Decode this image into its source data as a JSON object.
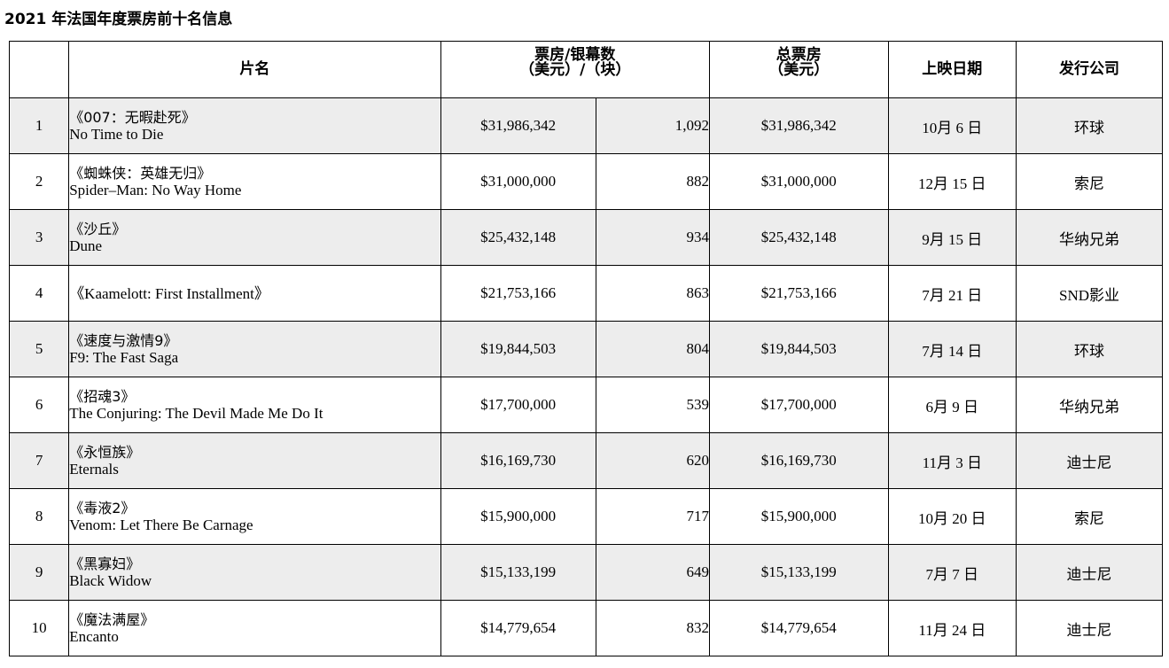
{
  "title": "2021 年法国年度票房前十名信息",
  "headers": {
    "rank": "",
    "film": "片名",
    "per_screen_line1": "票房/银幕数",
    "per_screen_line2": "（美元）/（块）",
    "total_line1": "总票房",
    "total_line2": "（美元）",
    "release_date": "上映日期",
    "distributor": "发行公司"
  },
  "rows": [
    {
      "rank": "1",
      "title_zh": "《007：无暇赴死》",
      "title_en": "No Time to Die",
      "box_office": "$31,986,342",
      "screens": "1,092",
      "total": "$31,986,342",
      "release_date": "10月 6 日",
      "distributor": "环球"
    },
    {
      "rank": "2",
      "title_zh": "《蜘蛛侠：英雄无归》",
      "title_en": "Spider–Man: No Way Home",
      "box_office": "$31,000,000",
      "screens": "882",
      "total": "$31,000,000",
      "release_date": "12月 15 日",
      "distributor": "索尼"
    },
    {
      "rank": "3",
      "title_zh": "《沙丘》",
      "title_en": "Dune",
      "box_office": "$25,432,148",
      "screens": "934",
      "total": "$25,432,148",
      "release_date": "9月 15 日",
      "distributor": "华纳兄弟"
    },
    {
      "rank": "4",
      "title_zh": "",
      "title_en": "",
      "title_single": "《Kaamelott: First Installment》",
      "box_office": "$21,753,166",
      "screens": "863",
      "total": "$21,753,166",
      "release_date": "7月 21 日",
      "distributor": "SND影业"
    },
    {
      "rank": "5",
      "title_zh": "《速度与激情9》",
      "title_en": "F9: The Fast Saga",
      "box_office": "$19,844,503",
      "screens": "804",
      "total": "$19,844,503",
      "release_date": "7月 14 日",
      "distributor": "环球"
    },
    {
      "rank": "6",
      "title_zh": "《招魂3》",
      "title_en": "The Conjuring: The Devil Made Me Do It",
      "box_office": "$17,700,000",
      "screens": "539",
      "total": "$17,700,000",
      "release_date": "6月 9 日",
      "distributor": "华纳兄弟"
    },
    {
      "rank": "7",
      "title_zh": "《永恒族》",
      "title_en": "Eternals",
      "box_office": "$16,169,730",
      "screens": "620",
      "total": "$16,169,730",
      "release_date": "11月 3 日",
      "distributor": "迪士尼"
    },
    {
      "rank": "8",
      "title_zh": "《毒液2》",
      "title_en": "Venom: Let There Be Carnage",
      "box_office": "$15,900,000",
      "screens": "717",
      "total": "$15,900,000",
      "release_date": "10月 20 日",
      "distributor": "索尼"
    },
    {
      "rank": "9",
      "title_zh": "《黑寡妇》",
      "title_en": "Black Widow",
      "box_office": "$15,133,199",
      "screens": "649",
      "total": "$15,133,199",
      "release_date": "7月 7 日",
      "distributor": "迪士尼"
    },
    {
      "rank": "10",
      "title_zh": "《魔法满屋》",
      "title_en": "Encanto",
      "box_office": "$14,779,654",
      "screens": "832",
      "total": "$14,779,654",
      "release_date": "11月 24 日",
      "distributor": "迪士尼"
    }
  ],
  "colors": {
    "shaded_row": "#ededed",
    "plain_row": "#ffffff",
    "border": "#000000"
  }
}
